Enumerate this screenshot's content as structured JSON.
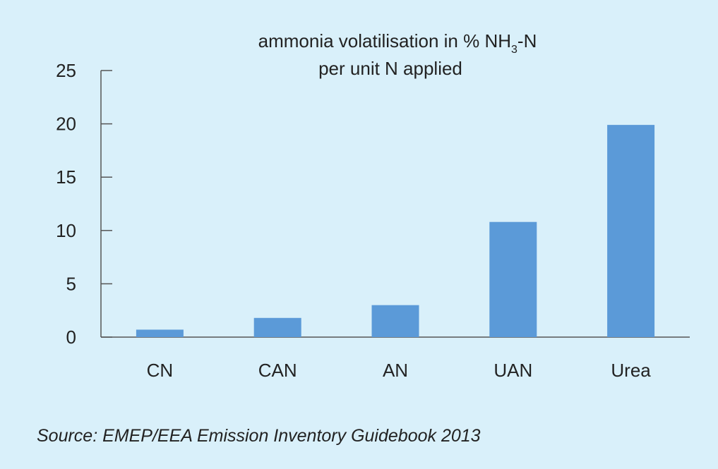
{
  "chart_data": {
    "type": "bar",
    "title_line1_main": "ammonia volatilisation in % NH",
    "title_line1_sub": "3",
    "title_line1_end": "-N",
    "title_line2": "per unit N applied",
    "categories": [
      "CN",
      "CAN",
      "AN",
      "UAN",
      "Urea"
    ],
    "values": [
      0.7,
      1.8,
      3.0,
      10.8,
      19.9
    ],
    "ylim": [
      0,
      25
    ],
    "yticks": [
      "0",
      "5",
      "10",
      "15",
      "20",
      "25"
    ],
    "bar_color": "#5b9ad8",
    "axis_color": "#555555",
    "grid": false,
    "legend": "none"
  },
  "source": "Source: EMEP/EEA Emission Inventory Guidebook 2013",
  "colors": {
    "background": "#d9f0fa",
    "bar": "#5b9ad8"
  }
}
